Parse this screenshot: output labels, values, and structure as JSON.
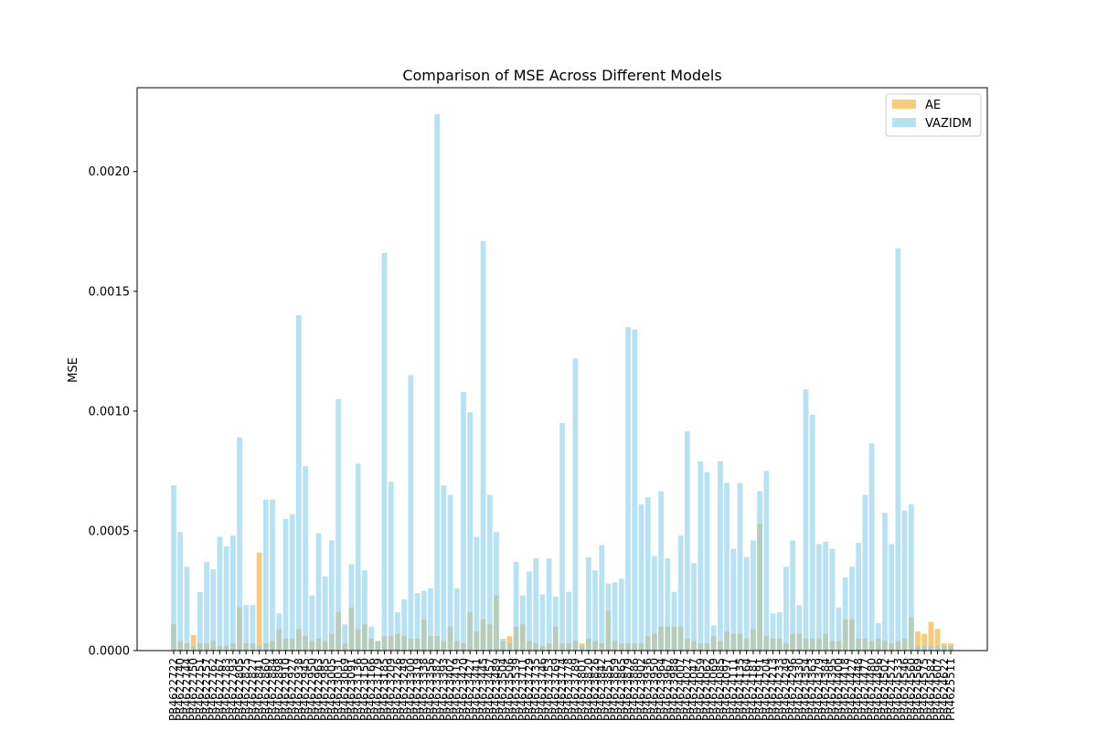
{
  "chart_data": {
    "type": "bar",
    "title": "Comparison of MSE Across Different Models",
    "xlabel": "",
    "ylabel": "MSE",
    "ylim": [
      0,
      0.00235
    ],
    "yticks": [
      "0.0000",
      "0.0005",
      "0.0010",
      "0.0015",
      "0.0020"
    ],
    "ytick_values": [
      0,
      0.0005,
      0.001,
      0.0015,
      0.002
    ],
    "grid": false,
    "legend_position": "top-right",
    "categories": [
      "PR4622722",
      "PR4622740",
      "PR4622744",
      "PR4622750",
      "PR4622751",
      "PR4622757",
      "PR4622762",
      "PR4622767",
      "PR4622783",
      "PR4622793",
      "PR4622805",
      "PR4622825",
      "PR4622827",
      "PR4622841",
      "PR4622860",
      "PR4622884",
      "PR4622898",
      "PR4622910",
      "PR4622927",
      "PR4622938",
      "PR4622945",
      "PR4622950",
      "PR4622963",
      "PR4622985",
      "PR4623005",
      "PR4623031",
      "PR4623069",
      "PR4623091",
      "PR4623136",
      "PR4623150",
      "PR4623166",
      "PR4623179",
      "PR4623185",
      "PR4623209",
      "PR4623226",
      "PR4623249",
      "PR4623300",
      "PR4623319",
      "PR4623338",
      "PR4623356",
      "PR4623382",
      "PR4623393",
      "PR4623402",
      "PR4623419",
      "PR4623420",
      "PR4623427",
      "PR4623441",
      "PR4623445",
      "PR4623457",
      "PR4623489",
      "PR4623504",
      "PR4623506",
      "PR4623539",
      "PR4623711",
      "PR4623729",
      "PR4623735",
      "PR4623746",
      "PR4623753",
      "PR4623769",
      "PR4623774",
      "PR4623778",
      "PR4623789",
      "PR4623801",
      "PR4623820",
      "PR4623826",
      "PR4623842",
      "PR4623851",
      "PR4623859",
      "PR4623865",
      "PR4623879",
      "PR4623886",
      "PR4623902",
      "PR4623936",
      "PR4623950",
      "PR4623964",
      "PR4623967",
      "PR4623988",
      "PR4624007",
      "PR4624027",
      "PR4624047",
      "PR4624059",
      "PR4624062",
      "PR4624069",
      "PR4624085",
      "PR4624097",
      "PR4624111",
      "PR4624135",
      "PR4624164",
      "PR4624181",
      "PR4624191",
      "PR4624204",
      "PR4624213",
      "PR4624233",
      "PR4624249",
      "PR4624296",
      "PR4624330",
      "PR4624354",
      "PR4624363",
      "PR4624379",
      "PR4624384",
      "PR4624395",
      "PR4624400",
      "PR4624418",
      "PR4624427",
      "PR4624448",
      "PR4624477",
      "PR4624480",
      "PR4624496",
      "PR4624502",
      "PR4624521",
      "PR4624533",
      "PR4624546",
      "PR4624560",
      "PR4624569",
      "PR4624575",
      "PR4624582",
      "PR4624607",
      "PR4624622",
      "PR4625511"
    ],
    "series": [
      {
        "name": "AE",
        "color": "#f5a623",
        "values": [
          0.00011,
          4e-05,
          3e-05,
          6.5e-05,
          3e-05,
          3e-05,
          4e-05,
          2e-05,
          2e-05,
          3e-05,
          0.00018,
          3e-05,
          3e-05,
          0.00041,
          3e-05,
          4e-05,
          9e-05,
          5e-05,
          5e-05,
          9e-05,
          6e-05,
          4e-05,
          5e-05,
          4e-05,
          7e-05,
          0.00016,
          3e-05,
          0.00018,
          9e-05,
          0.00011,
          5e-05,
          4e-05,
          6e-05,
          6e-05,
          7e-05,
          6e-05,
          5e-05,
          5e-05,
          0.00013,
          6e-05,
          6e-05,
          4e-05,
          0.0001,
          4e-05,
          3e-05,
          0.00016,
          8e-05,
          0.00013,
          0.00011,
          0.00023,
          4e-05,
          6e-05,
          0.0001,
          0.00011,
          4e-05,
          3e-05,
          2e-05,
          3e-05,
          0.0001,
          3e-05,
          3e-05,
          4e-05,
          3e-05,
          5e-05,
          4e-05,
          3e-05,
          0.000165,
          4e-05,
          3e-05,
          3e-05,
          3e-05,
          3e-05,
          6e-05,
          7e-05,
          0.0001,
          0.0001,
          0.0001,
          0.0001,
          5e-05,
          4e-05,
          3e-05,
          3e-05,
          6e-05,
          4e-05,
          8e-05,
          7e-05,
          7e-05,
          5e-05,
          9e-05,
          0.00053,
          6e-05,
          5e-05,
          5e-05,
          3e-05,
          7e-05,
          7e-05,
          5e-05,
          5e-05,
          5e-05,
          7e-05,
          4e-05,
          4e-05,
          0.00013,
          0.00013,
          5e-05,
          5e-05,
          4e-05,
          5e-05,
          4e-05,
          3e-05,
          4e-05,
          5e-05,
          0.00014,
          8e-05,
          7e-05,
          0.00012,
          9e-05,
          3e-05,
          3e-05
        ]
      },
      {
        "name": "VAZIDM",
        "color": "#87ceeb",
        "values": [
          0.00069,
          0.000495,
          0.00035,
          2e-05,
          0.000245,
          0.00037,
          0.00034,
          0.000475,
          0.000435,
          0.00048,
          0.00089,
          0.00019,
          0.00019,
          2e-05,
          0.00063,
          0.00063,
          0.000155,
          0.00055,
          0.00057,
          0.0014,
          0.00077,
          0.00023,
          0.00049,
          0.00031,
          0.00046,
          0.00105,
          0.00011,
          0.00036,
          0.00078,
          0.000335,
          0.0001,
          4e-05,
          0.00166,
          0.000705,
          0.00016,
          0.000215,
          0.00115,
          0.00024,
          0.00025,
          0.00026,
          0.00224,
          0.00069,
          0.00065,
          0.00026,
          0.00108,
          0.000995,
          0.000475,
          0.00171,
          0.00065,
          0.000495,
          5e-05,
          3e-05,
          0.00037,
          0.00023,
          0.00033,
          0.000385,
          0.000235,
          0.000385,
          0.000225,
          0.00095,
          0.000245,
          0.00122,
          2e-05,
          0.00039,
          0.000335,
          0.00044,
          0.00028,
          0.000285,
          0.0003,
          0.00135,
          0.00134,
          0.00061,
          0.00064,
          0.000395,
          0.000665,
          0.000385,
          0.000245,
          0.00048,
          0.000915,
          0.000365,
          0.00079,
          0.000745,
          0.000105,
          0.00079,
          0.0007,
          0.000425,
          0.0007,
          0.00039,
          0.00046,
          0.000665,
          0.00075,
          0.000155,
          0.00016,
          0.00035,
          0.00046,
          0.00019,
          0.00109,
          0.000985,
          0.000445,
          0.000455,
          0.000425,
          0.00018,
          0.000305,
          0.00035,
          0.00045,
          0.00065,
          0.000865,
          0.000115,
          0.000575,
          0.000445,
          0.00168,
          0.000585,
          0.00061,
          2e-05,
          2e-05,
          2e-05,
          2e-05,
          2e-05,
          2e-05
        ]
      }
    ]
  }
}
